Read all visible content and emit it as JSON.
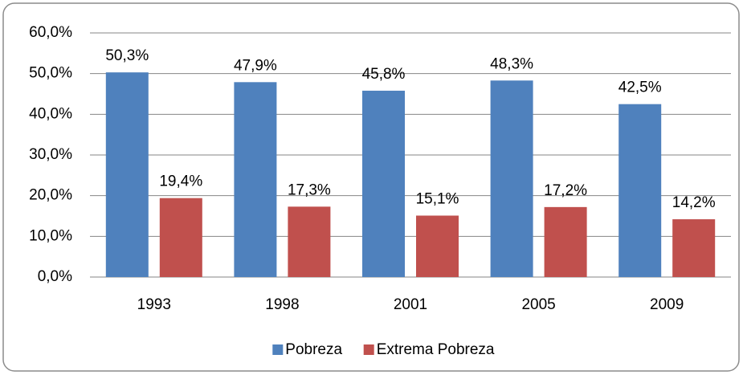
{
  "chart_data": {
    "type": "bar",
    "categories": [
      "1993",
      "1998",
      "2001",
      "2005",
      "2009"
    ],
    "series": [
      {
        "name": "Pobreza",
        "color": "#4f81bd",
        "values": [
          50.3,
          47.9,
          45.8,
          48.3,
          42.5
        ],
        "value_labels": [
          "50,3%",
          "47,9%",
          "45,8%",
          "48,3%",
          "42,5%"
        ]
      },
      {
        "name": "Extrema Pobreza",
        "color": "#c0504d",
        "values": [
          19.4,
          17.3,
          15.1,
          17.2,
          14.2
        ],
        "value_labels": [
          "19,4%",
          "17,3%",
          "15,1%",
          "17,2%",
          "14,2%"
        ]
      }
    ],
    "ylim": [
      0,
      60
    ],
    "yticks": [
      {
        "value": 0,
        "label": "0,0%"
      },
      {
        "value": 10,
        "label": "10,0%"
      },
      {
        "value": 20,
        "label": "20,0%"
      },
      {
        "value": 30,
        "label": "30,0%"
      },
      {
        "value": 40,
        "label": "40,0%"
      },
      {
        "value": 50,
        "label": "50,0%"
      },
      {
        "value": 60,
        "label": "60,0%"
      }
    ],
    "grid": true,
    "legend": "bottom"
  }
}
